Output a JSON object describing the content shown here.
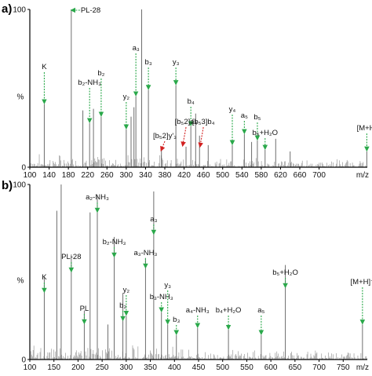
{
  "chart_data": [
    {
      "type": "bar",
      "panel_label": "a)",
      "xlabel": "m/z",
      "ylabel": "%",
      "xlim": [
        100,
        800
      ],
      "ylim": [
        0,
        100
      ],
      "x_ticks": [
        100,
        140,
        180,
        220,
        260,
        300,
        340,
        380,
        420,
        460,
        500,
        540,
        580,
        620,
        660,
        700
      ],
      "y_ticks": [
        0,
        100
      ],
      "peaks": [
        {
          "x": 130,
          "y": 40
        },
        {
          "x": 186,
          "y": 100
        },
        {
          "x": 210,
          "y": 36
        },
        {
          "x": 224,
          "y": 28
        },
        {
          "x": 232,
          "y": 37
        },
        {
          "x": 248,
          "y": 32
        },
        {
          "x": 300,
          "y": 24
        },
        {
          "x": 310,
          "y": 32
        },
        {
          "x": 316,
          "y": 38
        },
        {
          "x": 320,
          "y": 45
        },
        {
          "x": 332,
          "y": 100
        },
        {
          "x": 346,
          "y": 49
        },
        {
          "x": 373,
          "y": 12
        },
        {
          "x": 403,
          "y": 52
        },
        {
          "x": 424,
          "y": 13
        },
        {
          "x": 434,
          "y": 26
        },
        {
          "x": 444,
          "y": 34
        },
        {
          "x": 452,
          "y": 20
        },
        {
          "x": 470,
          "y": 14
        },
        {
          "x": 520,
          "y": 14
        },
        {
          "x": 545,
          "y": 21
        },
        {
          "x": 560,
          "y": 16
        },
        {
          "x": 572,
          "y": 17
        },
        {
          "x": 588,
          "y": 11
        },
        {
          "x": 610,
          "y": 18
        },
        {
          "x": 640,
          "y": 10
        },
        {
          "x": 799,
          "y": 10
        }
      ],
      "annotations": [
        {
          "text": "PL-28",
          "x": 186,
          "color": "#2aa84a"
        },
        {
          "text": "K",
          "x": 130,
          "color": "#2aa84a"
        },
        {
          "text": "b₂-NH₃",
          "x": 224,
          "color": "#2aa84a"
        },
        {
          "text": "b₂",
          "x": 248,
          "color": "#2aa84a"
        },
        {
          "text": "y₂",
          "x": 300,
          "color": "#2aa84a"
        },
        {
          "text": "a₃",
          "x": 320,
          "color": "#2aa84a"
        },
        {
          "text": "b₃",
          "x": 346,
          "color": "#2aa84a"
        },
        {
          "text": "y₃",
          "x": 403,
          "color": "#2aa84a"
        },
        {
          "text": "b₄",
          "x": 434,
          "color": "#2aa84a"
        },
        {
          "text": "[b₅2]y'₃",
          "x": 380,
          "color": "#d22020"
        },
        {
          "text": "[b₅2]a₄",
          "x": 424,
          "color": "#d22020"
        },
        {
          "text": "[b₅3]b₄",
          "x": 460,
          "color": "#d22020"
        },
        {
          "text": "y₄",
          "x": 520,
          "color": "#2aa84a"
        },
        {
          "text": "a₅",
          "x": 545,
          "color": "#2aa84a"
        },
        {
          "text": "b₅",
          "x": 572,
          "color": "#2aa84a"
        },
        {
          "text": "b₅+H₂O",
          "x": 588,
          "color": "#2aa84a"
        },
        {
          "text": "[M+H]",
          "x": 799,
          "color": "#2aa84a"
        }
      ]
    },
    {
      "type": "bar",
      "panel_label": "b)",
      "xlabel": "m/z",
      "ylabel": "%",
      "xlim": [
        100,
        800
      ],
      "ylim": [
        0,
        100
      ],
      "x_ticks": [
        100,
        150,
        200,
        250,
        300,
        350,
        400,
        450,
        500,
        550,
        600,
        650,
        700,
        750
      ],
      "y_ticks": [
        0,
        100
      ],
      "peaks": [
        {
          "x": 130,
          "y": 47
        },
        {
          "x": 156,
          "y": 85
        },
        {
          "x": 165,
          "y": 100
        },
        {
          "x": 186,
          "y": 60
        },
        {
          "x": 213,
          "y": 28
        },
        {
          "x": 225,
          "y": 84
        },
        {
          "x": 240,
          "y": 94
        },
        {
          "x": 262,
          "y": 20
        },
        {
          "x": 275,
          "y": 70
        },
        {
          "x": 293,
          "y": 38
        },
        {
          "x": 300,
          "y": 25
        },
        {
          "x": 340,
          "y": 58
        },
        {
          "x": 357,
          "y": 96
        },
        {
          "x": 373,
          "y": 27
        },
        {
          "x": 386,
          "y": 20
        },
        {
          "x": 404,
          "y": 14
        },
        {
          "x": 448,
          "y": 18
        },
        {
          "x": 512,
          "y": 17
        },
        {
          "x": 580,
          "y": 14
        },
        {
          "x": 630,
          "y": 54
        },
        {
          "x": 790,
          "y": 20
        }
      ],
      "annotations": [
        {
          "text": "K",
          "x": 130,
          "color": "#2aa84a"
        },
        {
          "text": "PL-28",
          "x": 186,
          "color": "#2aa84a"
        },
        {
          "text": "PL",
          "x": 213,
          "color": "#2aa84a"
        },
        {
          "text": "a₂-NH₃",
          "x": 240,
          "color": "#2aa84a"
        },
        {
          "text": "b₂-NH₃",
          "x": 275,
          "color": "#2aa84a"
        },
        {
          "text": "b₂",
          "x": 293,
          "color": "#2aa84a"
        },
        {
          "text": "y₂",
          "x": 300,
          "color": "#2aa84a"
        },
        {
          "text": "a₃-NH₃",
          "x": 340,
          "color": "#2aa84a"
        },
        {
          "text": "a₃",
          "x": 357,
          "color": "#2aa84a"
        },
        {
          "text": "b₃-NH₃",
          "x": 373,
          "color": "#2aa84a"
        },
        {
          "text": "y₃",
          "x": 386,
          "color": "#2aa84a"
        },
        {
          "text": "b₃",
          "x": 404,
          "color": "#2aa84a"
        },
        {
          "text": "a₄-NH₃",
          "x": 448,
          "color": "#2aa84a"
        },
        {
          "text": "b₄+H₂O",
          "x": 512,
          "color": "#2aa84a"
        },
        {
          "text": "a₅",
          "x": 580,
          "color": "#2aa84a"
        },
        {
          "text": "b₅+H₂O",
          "x": 630,
          "color": "#2aa84a"
        },
        {
          "text": "[M+H]⁺",
          "x": 790,
          "color": "#2aa84a"
        }
      ]
    }
  ],
  "colors": {
    "peak": "#6e6e6e",
    "axis": "#000000",
    "fragment_arrow": "#2aa84a",
    "cross_ring_arrow": "#d22020"
  }
}
